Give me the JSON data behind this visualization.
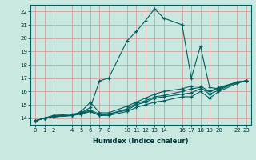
{
  "xlabel": "Humidex (Indice chaleur)",
  "bg_color": "#c8e8e0",
  "line_color": "#006060",
  "grid_color_h": "#d4a0a0",
  "grid_color_v": "#d4a0a0",
  "ylim": [
    13.5,
    22.5
  ],
  "xlim": [
    -0.5,
    23.5
  ],
  "yticks": [
    14,
    15,
    16,
    17,
    18,
    19,
    20,
    21,
    22
  ],
  "xticks": [
    0,
    1,
    2,
    4,
    5,
    6,
    7,
    8,
    10,
    11,
    12,
    13,
    14,
    16,
    17,
    18,
    19,
    20,
    22,
    23
  ],
  "lines": [
    {
      "x": [
        0,
        1,
        2,
        4,
        5,
        6,
        7,
        8,
        10,
        11,
        12,
        13,
        14,
        16,
        17,
        18,
        19,
        20,
        22,
        23
      ],
      "y": [
        13.8,
        14.0,
        14.2,
        14.2,
        14.4,
        14.8,
        16.8,
        17.0,
        19.8,
        20.5,
        21.3,
        22.2,
        21.5,
        21.0,
        17.0,
        19.4,
        16.3,
        16.2,
        16.7,
        16.8
      ]
    },
    {
      "x": [
        0,
        1,
        2,
        4,
        5,
        6,
        7,
        8,
        10,
        11,
        12,
        13,
        14,
        16,
        17,
        18,
        19,
        20,
        22,
        23
      ],
      "y": [
        13.8,
        14.0,
        14.2,
        14.3,
        14.4,
        14.5,
        14.2,
        14.2,
        14.5,
        14.8,
        15.0,
        15.2,
        15.3,
        15.6,
        15.6,
        16.0,
        15.5,
        16.0,
        16.6,
        16.8
      ]
    },
    {
      "x": [
        0,
        1,
        2,
        4,
        5,
        6,
        7,
        8,
        10,
        11,
        12,
        13,
        14,
        16,
        17,
        18,
        19,
        20,
        22,
        23
      ],
      "y": [
        13.8,
        14.0,
        14.1,
        14.2,
        14.3,
        14.5,
        14.2,
        14.3,
        14.6,
        15.0,
        15.2,
        15.5,
        15.6,
        15.8,
        15.9,
        16.2,
        16.0,
        16.2,
        16.7,
        16.8
      ]
    },
    {
      "x": [
        0,
        1,
        2,
        4,
        5,
        6,
        7,
        8,
        10,
        11,
        12,
        13,
        14,
        16,
        17,
        18,
        19,
        20,
        22,
        23
      ],
      "y": [
        13.8,
        14.0,
        14.1,
        14.2,
        14.4,
        14.6,
        14.3,
        14.3,
        14.7,
        15.1,
        15.3,
        15.6,
        15.7,
        16.0,
        16.2,
        16.3,
        15.8,
        16.1,
        16.7,
        16.8
      ]
    },
    {
      "x": [
        0,
        1,
        2,
        4,
        5,
        6,
        7,
        8,
        10,
        11,
        12,
        13,
        14,
        16,
        17,
        18,
        19,
        20,
        22,
        23
      ],
      "y": [
        13.8,
        14.0,
        14.1,
        14.2,
        14.5,
        15.2,
        14.4,
        14.4,
        14.9,
        15.2,
        15.5,
        15.8,
        16.0,
        16.2,
        16.4,
        16.4,
        16.0,
        16.3,
        16.7,
        16.8
      ]
    }
  ],
  "tick_fontsize": 5,
  "xlabel_fontsize": 6,
  "label_color": "#003333"
}
